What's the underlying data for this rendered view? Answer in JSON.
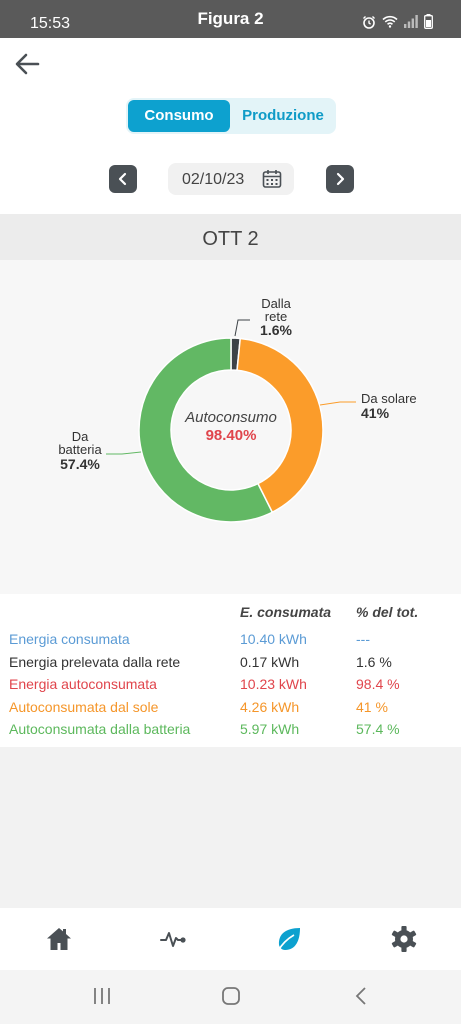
{
  "status_bar": {
    "time": "15:53",
    "title": "Figura 2",
    "icons": [
      "alarm-icon",
      "wifi-icon",
      "signal-icon",
      "battery-icon"
    ]
  },
  "header": {
    "back_icon": "arrow-left-icon",
    "segment": {
      "active": "Consumo",
      "inactive": "Produzione"
    },
    "date": "02/10/23",
    "prev_icon": "chevron-left-icon",
    "next_icon": "chevron-right-icon",
    "calendar_icon": "calendar-icon"
  },
  "day_title": "OTT 2",
  "chart_data": {
    "type": "pie",
    "center_label": "Autoconsumo",
    "center_value": "98.40%",
    "slices": [
      {
        "label_line1": "Dalla",
        "label_line2": "rete",
        "value_text": "1.6%",
        "value": 1.6,
        "color": "#3d4347"
      },
      {
        "label_line1": "Da solare",
        "label_line2": "",
        "value_text": "41%",
        "value": 41,
        "color": "#fb9c2a"
      },
      {
        "label_line1": "Da",
        "label_line2": "batteria",
        "value_text": "57.4%",
        "value": 57.4,
        "color": "#62b864"
      }
    ]
  },
  "table": {
    "col_value": "E. consumata",
    "col_pct": "% del tot.",
    "rows": [
      {
        "label": "Energia consumata",
        "value": "10.40 kWh",
        "pct": "---",
        "color": "#5b9bd5"
      },
      {
        "label": "Energia prelevata dalla rete",
        "value": "0.17 kWh",
        "pct": "1.6 %",
        "color": "#333333"
      },
      {
        "label": "Energia autoconsumata",
        "value": "10.23 kWh",
        "pct": "98.4 %",
        "color": "#e0454c"
      },
      {
        "label": "Autoconsumata dal sole",
        "value": "4.26 kWh",
        "pct": "41 %",
        "color": "#f5962a"
      },
      {
        "label": "Autoconsumata dalla batteria",
        "value": "5.97 kWh",
        "pct": "57.4 %",
        "color": "#5cb85c"
      }
    ]
  },
  "bottom_nav": [
    "home-icon",
    "activity-icon",
    "leaf-icon",
    "settings-icon"
  ],
  "colors": {
    "accent": "#0da1cf",
    "nav_inactive": "#4a5055"
  }
}
